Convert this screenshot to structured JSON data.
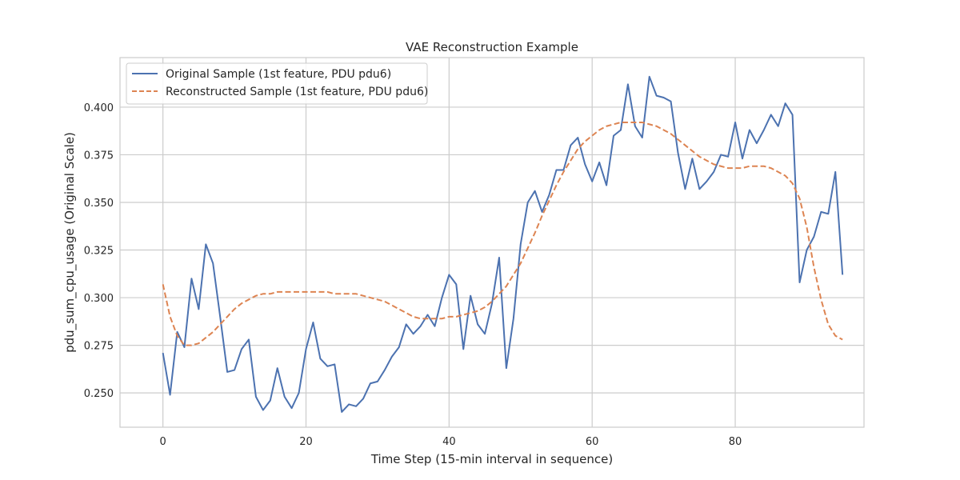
{
  "chart_data": {
    "type": "line",
    "title": "VAE Reconstruction Example",
    "xlabel": "Time Step (15-min interval in sequence)",
    "ylabel": "pdu_sum_cpu_usage (Original Scale)",
    "xlim": [
      -6,
      98
    ],
    "ylim": [
      0.232,
      0.426
    ],
    "xticks": [
      0,
      20,
      40,
      60,
      80
    ],
    "xtick_labels": [
      "0",
      "20",
      "40",
      "60",
      "80"
    ],
    "yticks": [
      0.25,
      0.275,
      0.3,
      0.325,
      0.35,
      0.375,
      0.4
    ],
    "ytick_labels": [
      "0.250",
      "0.275",
      "0.300",
      "0.325",
      "0.350",
      "0.375",
      "0.400"
    ],
    "grid": true,
    "legend_position": "top-left",
    "series": [
      {
        "name": "Original Sample (1st feature, PDU pdu6)",
        "color": "#4c72b0",
        "style": "solid",
        "x": [
          0,
          1,
          2,
          3,
          4,
          5,
          6,
          7,
          8,
          9,
          10,
          11,
          12,
          13,
          14,
          15,
          16,
          17,
          18,
          19,
          20,
          21,
          22,
          23,
          24,
          25,
          26,
          27,
          28,
          29,
          30,
          31,
          32,
          33,
          34,
          35,
          36,
          37,
          38,
          39,
          40,
          41,
          42,
          43,
          44,
          45,
          46,
          47,
          48,
          49,
          50,
          51,
          52,
          53,
          54,
          55,
          56,
          57,
          58,
          59,
          60,
          61,
          62,
          63,
          64,
          65,
          66,
          67,
          68,
          69,
          70,
          71,
          72,
          73,
          74,
          75,
          76,
          77,
          78,
          79,
          80,
          81,
          82,
          83,
          84,
          85,
          86,
          87,
          88,
          89,
          90,
          91,
          92,
          93,
          94,
          95
        ],
        "values": [
          0.271,
          0.249,
          0.282,
          0.274,
          0.31,
          0.294,
          0.328,
          0.318,
          0.29,
          0.261,
          0.262,
          0.273,
          0.278,
          0.248,
          0.241,
          0.246,
          0.263,
          0.248,
          0.242,
          0.25,
          0.273,
          0.287,
          0.268,
          0.264,
          0.265,
          0.24,
          0.244,
          0.243,
          0.247,
          0.255,
          0.256,
          0.262,
          0.269,
          0.274,
          0.286,
          0.281,
          0.285,
          0.291,
          0.285,
          0.3,
          0.312,
          0.307,
          0.273,
          0.301,
          0.286,
          0.281,
          0.297,
          0.321,
          0.263,
          0.289,
          0.328,
          0.35,
          0.356,
          0.345,
          0.354,
          0.367,
          0.367,
          0.38,
          0.384,
          0.37,
          0.361,
          0.371,
          0.359,
          0.385,
          0.388,
          0.412,
          0.39,
          0.384,
          0.416,
          0.406,
          0.405,
          0.403,
          0.376,
          0.357,
          0.373,
          0.357,
          0.361,
          0.366,
          0.375,
          0.374,
          0.392,
          0.373,
          0.388,
          0.381,
          0.388,
          0.396,
          0.39,
          0.402,
          0.396,
          0.308,
          0.325,
          0.332,
          0.345,
          0.344,
          0.366,
          0.312
        ]
      },
      {
        "name": "Reconstructed Sample (1st feature, PDU pdu6)",
        "color": "#dd8452",
        "style": "dashed",
        "x": [
          0,
          1,
          2,
          3,
          4,
          5,
          6,
          7,
          8,
          9,
          10,
          11,
          12,
          13,
          14,
          15,
          16,
          17,
          18,
          19,
          20,
          21,
          22,
          23,
          24,
          25,
          26,
          27,
          28,
          29,
          30,
          31,
          32,
          33,
          34,
          35,
          36,
          37,
          38,
          39,
          40,
          41,
          42,
          43,
          44,
          45,
          46,
          47,
          48,
          49,
          50,
          51,
          52,
          53,
          54,
          55,
          56,
          57,
          58,
          59,
          60,
          61,
          62,
          63,
          64,
          65,
          66,
          67,
          68,
          69,
          70,
          71,
          72,
          73,
          74,
          75,
          76,
          77,
          78,
          79,
          80,
          81,
          82,
          83,
          84,
          85,
          86,
          87,
          88,
          89,
          90,
          91,
          92,
          93,
          94,
          95
        ],
        "values": [
          0.307,
          0.29,
          0.28,
          0.275,
          0.275,
          0.276,
          0.279,
          0.282,
          0.286,
          0.29,
          0.294,
          0.297,
          0.299,
          0.301,
          0.302,
          0.302,
          0.303,
          0.303,
          0.303,
          0.303,
          0.303,
          0.303,
          0.303,
          0.303,
          0.302,
          0.302,
          0.302,
          0.302,
          0.301,
          0.3,
          0.299,
          0.298,
          0.296,
          0.294,
          0.292,
          0.29,
          0.289,
          0.289,
          0.289,
          0.289,
          0.29,
          0.29,
          0.291,
          0.292,
          0.293,
          0.295,
          0.298,
          0.302,
          0.306,
          0.312,
          0.318,
          0.326,
          0.334,
          0.343,
          0.351,
          0.359,
          0.366,
          0.372,
          0.378,
          0.382,
          0.385,
          0.388,
          0.39,
          0.391,
          0.392,
          0.392,
          0.392,
          0.392,
          0.391,
          0.39,
          0.388,
          0.386,
          0.383,
          0.38,
          0.377,
          0.374,
          0.372,
          0.37,
          0.369,
          0.368,
          0.368,
          0.368,
          0.369,
          0.369,
          0.369,
          0.368,
          0.366,
          0.364,
          0.36,
          0.352,
          0.337,
          0.316,
          0.299,
          0.286,
          0.28,
          0.278
        ]
      }
    ]
  }
}
